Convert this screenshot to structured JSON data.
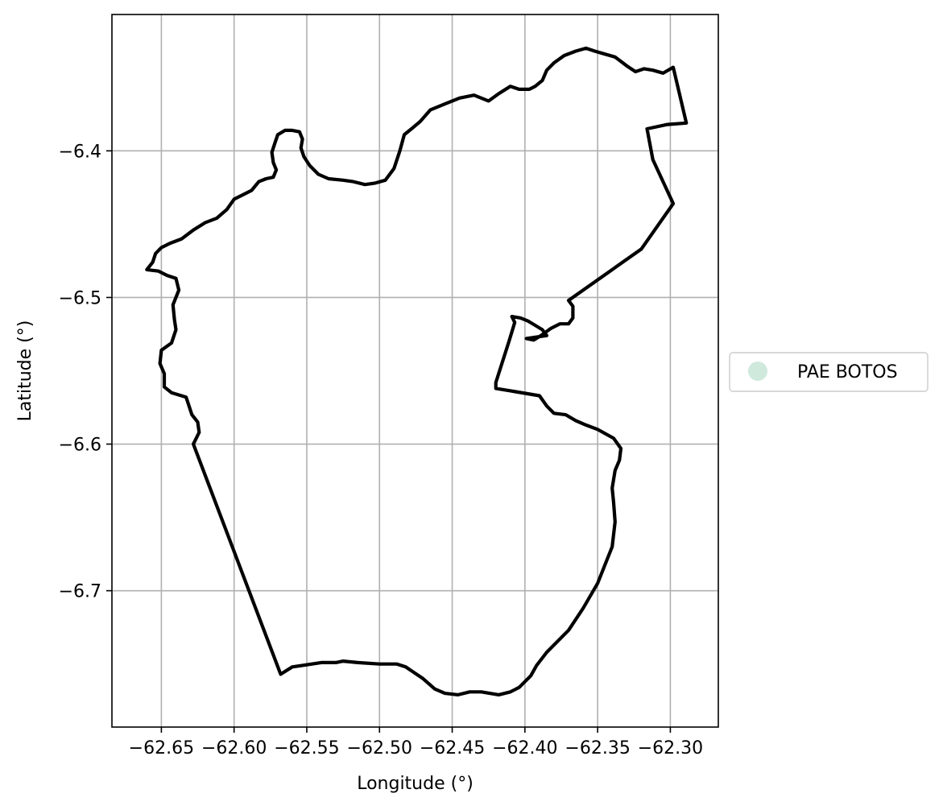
{
  "chart_data": {
    "type": "map",
    "xlabel": "Longitude (°)",
    "ylabel": "Latitude (°)",
    "xlim": [
      -62.684,
      -62.267
    ],
    "ylim": [
      -6.793,
      -6.307
    ],
    "grid": true,
    "x_ticks": [
      {
        "value": -62.65,
        "label": "−62.65"
      },
      {
        "value": -62.6,
        "label": "−62.60"
      },
      {
        "value": -62.55,
        "label": "−62.55"
      },
      {
        "value": -62.5,
        "label": "−62.50"
      },
      {
        "value": -62.45,
        "label": "−62.45"
      },
      {
        "value": -62.4,
        "label": "−62.40"
      },
      {
        "value": -62.35,
        "label": "−62.35"
      },
      {
        "value": -62.3,
        "label": "−62.30"
      }
    ],
    "y_ticks": [
      {
        "value": -6.4,
        "label": "−6.4"
      },
      {
        "value": -6.5,
        "label": "−6.5"
      },
      {
        "value": -6.6,
        "label": "−6.6"
      },
      {
        "value": -6.7,
        "label": "−6.7"
      }
    ],
    "legend": {
      "placement": "right",
      "entries": [
        {
          "label": "PAE BOTOS",
          "color": "#cfe9dd"
        }
      ]
    },
    "boundary_color": "#000000",
    "boundary": [
      [
        -62.628,
        -6.6
      ],
      [
        -62.568,
        -6.757
      ],
      [
        -62.56,
        -6.752
      ],
      [
        -62.54,
        -6.749
      ],
      [
        -62.53,
        -6.749
      ],
      [
        -62.525,
        -6.748
      ],
      [
        -62.515,
        -6.749
      ],
      [
        -62.5,
        -6.75
      ],
      [
        -62.488,
        -6.75
      ],
      [
        -62.482,
        -6.752
      ],
      [
        -62.47,
        -6.76
      ],
      [
        -62.462,
        -6.767
      ],
      [
        -62.455,
        -6.77
      ],
      [
        -62.446,
        -6.771
      ],
      [
        -62.438,
        -6.769
      ],
      [
        -62.43,
        -6.769
      ],
      [
        -62.418,
        -6.771
      ],
      [
        -62.41,
        -6.769
      ],
      [
        -62.404,
        -6.766
      ],
      [
        -62.396,
        -6.758
      ],
      [
        -62.392,
        -6.751
      ],
      [
        -62.385,
        -6.742
      ],
      [
        -62.37,
        -6.727
      ],
      [
        -62.36,
        -6.712
      ],
      [
        -62.35,
        -6.695
      ],
      [
        -62.34,
        -6.67
      ],
      [
        -62.338,
        -6.653
      ],
      [
        -62.339,
        -6.64
      ],
      [
        -62.34,
        -6.63
      ],
      [
        -62.338,
        -6.618
      ],
      [
        -62.335,
        -6.611
      ],
      [
        -62.334,
        -6.603
      ],
      [
        -62.339,
        -6.596
      ],
      [
        -62.35,
        -6.59
      ],
      [
        -62.358,
        -6.587
      ],
      [
        -62.365,
        -6.584
      ],
      [
        -62.372,
        -6.58
      ],
      [
        -62.38,
        -6.579
      ],
      [
        -62.385,
        -6.574
      ],
      [
        -62.39,
        -6.567
      ],
      [
        -62.408,
        -6.564
      ],
      [
        -62.42,
        -6.562
      ],
      [
        -62.42,
        -6.558
      ],
      [
        -62.411,
        -6.53
      ],
      [
        -62.407,
        -6.517
      ],
      [
        -62.409,
        -6.513
      ],
      [
        -62.403,
        -6.514
      ],
      [
        -62.398,
        -6.516
      ],
      [
        -62.393,
        -6.519
      ],
      [
        -62.388,
        -6.522
      ],
      [
        -62.385,
        -6.526
      ],
      [
        -62.392,
        -6.527
      ],
      [
        -62.399,
        -6.528
      ],
      [
        -62.394,
        -6.529
      ],
      [
        -62.389,
        -6.526
      ],
      [
        -62.382,
        -6.521
      ],
      [
        -62.376,
        -6.518
      ],
      [
        -62.37,
        -6.518
      ],
      [
        -62.367,
        -6.514
      ],
      [
        -62.367,
        -6.506
      ],
      [
        -62.37,
        -6.502
      ],
      [
        -62.32,
        -6.467
      ],
      [
        -62.298,
        -6.436
      ],
      [
        -62.312,
        -6.406
      ],
      [
        -62.316,
        -6.385
      ],
      [
        -62.302,
        -6.382
      ],
      [
        -62.289,
        -6.381
      ],
      [
        -62.298,
        -6.343
      ],
      [
        -62.305,
        -6.347
      ],
      [
        -62.312,
        -6.345
      ],
      [
        -62.318,
        -6.344
      ],
      [
        -62.324,
        -6.346
      ],
      [
        -62.33,
        -6.342
      ],
      [
        -62.338,
        -6.336
      ],
      [
        -62.345,
        -6.334
      ],
      [
        -62.352,
        -6.332
      ],
      [
        -62.358,
        -6.33
      ],
      [
        -62.365,
        -6.332
      ],
      [
        -62.373,
        -6.335
      ],
      [
        -62.38,
        -6.34
      ],
      [
        -62.385,
        -6.345
      ],
      [
        -62.388,
        -6.352
      ],
      [
        -62.393,
        -6.356
      ],
      [
        -62.397,
        -6.358
      ],
      [
        -62.404,
        -6.358
      ],
      [
        -62.41,
        -6.356
      ],
      [
        -62.418,
        -6.361
      ],
      [
        -62.425,
        -6.366
      ],
      [
        -62.435,
        -6.362
      ],
      [
        -62.445,
        -6.364
      ],
      [
        -62.455,
        -6.368
      ],
      [
        -62.465,
        -6.372
      ],
      [
        -62.472,
        -6.38
      ],
      [
        -62.478,
        -6.385
      ],
      [
        -62.483,
        -6.389
      ],
      [
        -62.486,
        -6.4
      ],
      [
        -62.49,
        -6.412
      ],
      [
        -62.496,
        -6.42
      ],
      [
        -62.503,
        -6.422
      ],
      [
        -62.51,
        -6.423
      ],
      [
        -62.518,
        -6.421
      ],
      [
        -62.525,
        -6.42
      ],
      [
        -62.535,
        -6.419
      ],
      [
        -62.542,
        -6.416
      ],
      [
        -62.548,
        -6.41
      ],
      [
        -62.552,
        -6.404
      ],
      [
        -62.554,
        -6.398
      ],
      [
        -62.553,
        -6.392
      ],
      [
        -62.555,
        -6.387
      ],
      [
        -62.56,
        -6.386
      ],
      [
        -62.565,
        -6.386
      ],
      [
        -62.57,
        -6.389
      ],
      [
        -62.572,
        -6.395
      ],
      [
        -62.574,
        -6.401
      ],
      [
        -62.573,
        -6.408
      ],
      [
        -62.571,
        -6.413
      ],
      [
        -62.573,
        -6.418
      ],
      [
        -62.578,
        -6.419
      ],
      [
        -62.583,
        -6.421
      ],
      [
        -62.588,
        -6.427
      ],
      [
        -62.594,
        -6.43
      ],
      [
        -62.6,
        -6.433
      ],
      [
        -62.605,
        -6.44
      ],
      [
        -62.612,
        -6.446
      ],
      [
        -62.62,
        -6.449
      ],
      [
        -62.628,
        -6.454
      ],
      [
        -62.636,
        -6.46
      ],
      [
        -62.644,
        -6.463
      ],
      [
        -62.65,
        -6.466
      ],
      [
        -62.654,
        -6.47
      ],
      [
        -62.656,
        -6.476
      ],
      [
        -62.66,
        -6.481
      ],
      [
        -62.652,
        -6.482
      ],
      [
        -62.646,
        -6.485
      ],
      [
        -62.64,
        -6.487
      ],
      [
        -62.638,
        -6.495
      ],
      [
        -62.642,
        -6.505
      ],
      [
        -62.641,
        -6.515
      ],
      [
        -62.64,
        -6.522
      ],
      [
        -62.643,
        -6.531
      ],
      [
        -62.65,
        -6.536
      ],
      [
        -62.651,
        -6.545
      ],
      [
        -62.648,
        -6.552
      ],
      [
        -62.648,
        -6.561
      ],
      [
        -62.643,
        -6.565
      ],
      [
        -62.633,
        -6.568
      ],
      [
        -62.632,
        -6.571
      ],
      [
        -62.629,
        -6.58
      ],
      [
        -62.625,
        -6.585
      ],
      [
        -62.624,
        -6.592
      ],
      [
        -62.627,
        -6.598
      ],
      [
        -62.628,
        -6.6
      ]
    ]
  }
}
